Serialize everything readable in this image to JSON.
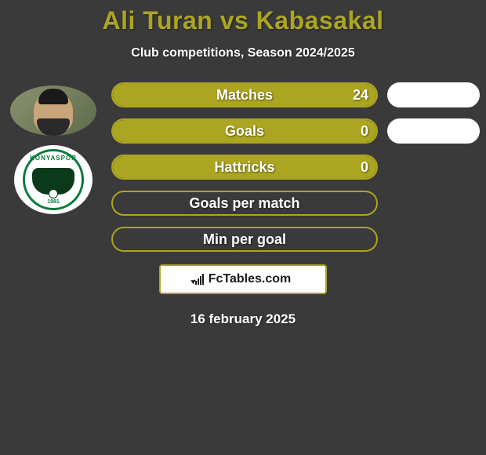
{
  "title": "Ali Turan vs Kabasakal",
  "subtitle": "Club competitions, Season 2024/2025",
  "date": "16 february 2025",
  "footer_brand": "FcTables.com",
  "colors": {
    "accent": "#aca521",
    "background": "#3a3a3a",
    "white": "#ffffff",
    "club_green": "#0a7a3a"
  },
  "club": {
    "name": "KONYASPOR",
    "year": "1981"
  },
  "stats": [
    {
      "label": "Matches",
      "left_value": "24",
      "left_fill_pct": 100,
      "right_fill": true
    },
    {
      "label": "Goals",
      "left_value": "0",
      "left_fill_pct": 100,
      "right_fill": true
    },
    {
      "label": "Hattricks",
      "left_value": "0",
      "left_fill_pct": 100,
      "right_fill": null
    },
    {
      "label": "Goals per match",
      "left_value": "",
      "left_fill_pct": 0,
      "right_fill": null
    },
    {
      "label": "Min per goal",
      "left_value": "",
      "left_fill_pct": 0,
      "right_fill": null
    }
  ]
}
